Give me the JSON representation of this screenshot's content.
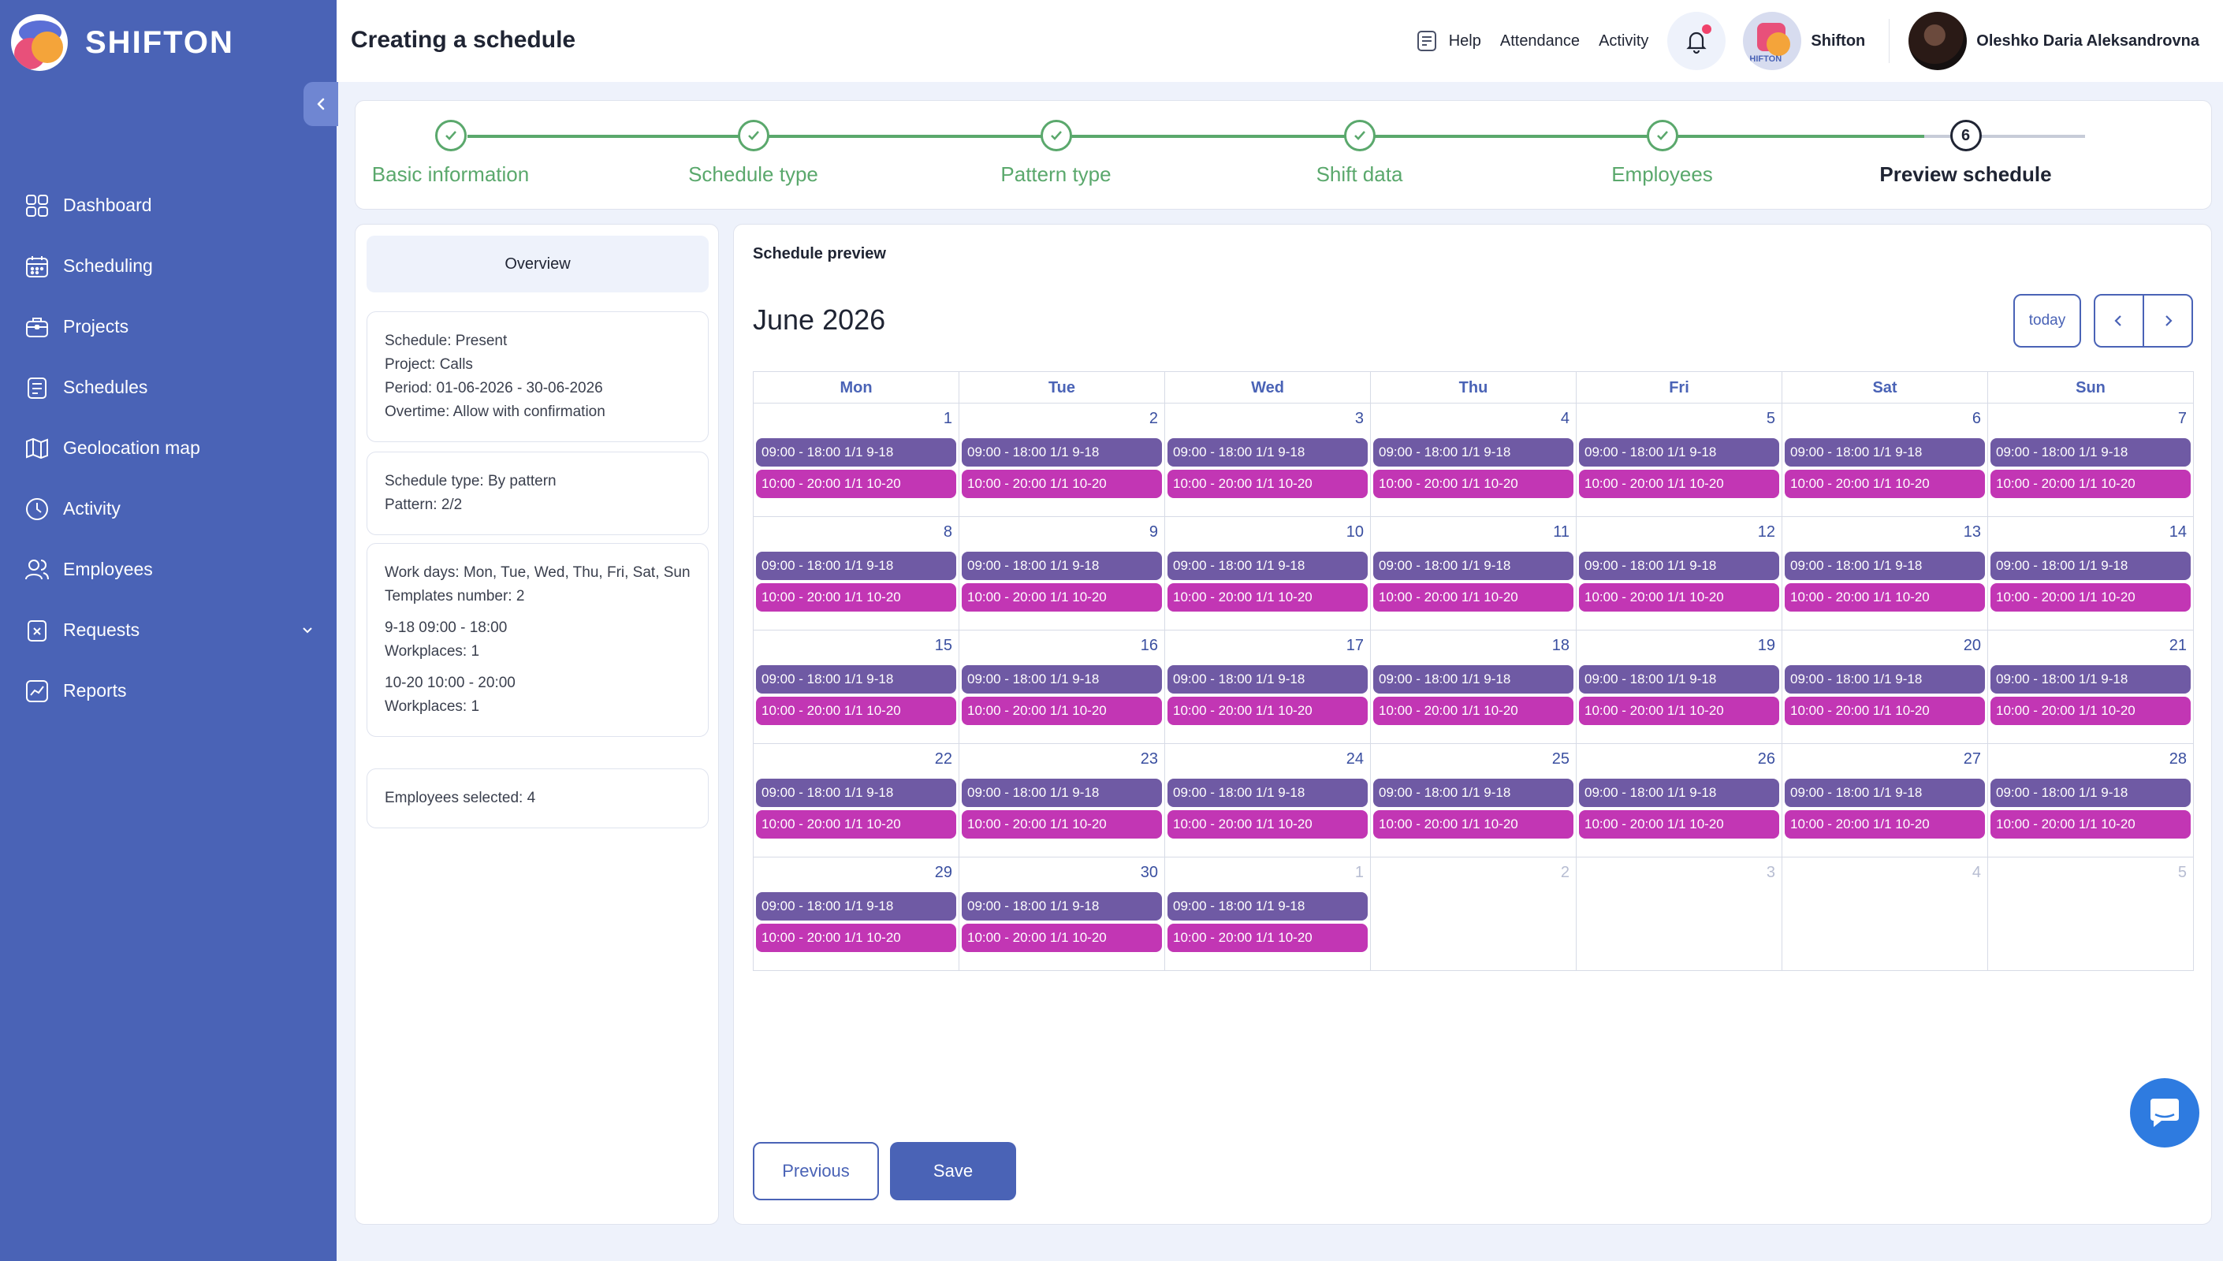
{
  "brand": {
    "name": "SHIFTON"
  },
  "sidebar": {
    "items": [
      {
        "label": "Dashboard",
        "icon": "dashboard-icon"
      },
      {
        "label": "Scheduling",
        "icon": "calendar-icon"
      },
      {
        "label": "Projects",
        "icon": "briefcase-icon"
      },
      {
        "label": "Schedules",
        "icon": "schedule-icon"
      },
      {
        "label": "Geolocation map",
        "icon": "map-icon"
      },
      {
        "label": "Activity",
        "icon": "clock-icon"
      },
      {
        "label": "Employees",
        "icon": "users-icon"
      },
      {
        "label": "Requests",
        "icon": "request-icon"
      },
      {
        "label": "Reports",
        "icon": "chart-icon"
      }
    ]
  },
  "header": {
    "title": "Creating a schedule",
    "help": "Help",
    "attendance": "Attendance",
    "activity": "Activity",
    "company": "Shifton",
    "company_logo_text": "HIFTON",
    "user": "Oleshko Daria Aleksandrovna"
  },
  "stepper": {
    "steps": [
      {
        "label": "Basic information",
        "status": "done"
      },
      {
        "label": "Schedule type",
        "status": "done"
      },
      {
        "label": "Pattern type",
        "status": "done"
      },
      {
        "label": "Shift data",
        "status": "done"
      },
      {
        "label": "Employees",
        "status": "done"
      },
      {
        "label": "Preview schedule",
        "status": "current",
        "number": "6"
      }
    ]
  },
  "overview": {
    "tab": "Overview",
    "schedule": "Schedule: Present",
    "project": "Project: Calls",
    "period": "Period: 01-06-2026 - 30-06-2026",
    "overtime": "Overtime: Allow with confirmation",
    "schedule_type": "Schedule type: By pattern",
    "pattern": "Pattern: 2/2",
    "work_days": "Work days: Mon, Tue, Wed, Thu, Fri, Sat, Sun",
    "templates": "Templates number: 2",
    "template1": "9-18 09:00 - 18:00",
    "template1_wp": "Workplaces: 1",
    "template2": "10-20 10:00 - 20:00",
    "template2_wp": "Workplaces: 1",
    "employees": "Employees selected: 4"
  },
  "preview": {
    "title": "Schedule preview",
    "month": "June 2026",
    "today": "today",
    "weekdays": [
      "Mon",
      "Tue",
      "Wed",
      "Thu",
      "Fri",
      "Sat",
      "Sun"
    ],
    "shift1": "09:00 - 18:00 1/1 9-18",
    "shift2": "10:00 - 20:00 1/1 10-20",
    "weeks": [
      [
        {
          "d": "1"
        },
        {
          "d": "2"
        },
        {
          "d": "3"
        },
        {
          "d": "4"
        },
        {
          "d": "5"
        },
        {
          "d": "6"
        },
        {
          "d": "7"
        }
      ],
      [
        {
          "d": "8"
        },
        {
          "d": "9"
        },
        {
          "d": "10"
        },
        {
          "d": "11"
        },
        {
          "d": "12"
        },
        {
          "d": "13"
        },
        {
          "d": "14"
        }
      ],
      [
        {
          "d": "15"
        },
        {
          "d": "16"
        },
        {
          "d": "17"
        },
        {
          "d": "18"
        },
        {
          "d": "19"
        },
        {
          "d": "20"
        },
        {
          "d": "21"
        }
      ],
      [
        {
          "d": "22"
        },
        {
          "d": "23"
        },
        {
          "d": "24"
        },
        {
          "d": "25"
        },
        {
          "d": "26"
        },
        {
          "d": "27"
        },
        {
          "d": "28"
        }
      ],
      [
        {
          "d": "29"
        },
        {
          "d": "30"
        },
        {
          "d": "1",
          "other": true,
          "shifts": true
        },
        {
          "d": "2",
          "other": true
        },
        {
          "d": "3",
          "other": true
        },
        {
          "d": "4",
          "other": true
        },
        {
          "d": "5",
          "other": true
        }
      ]
    ]
  },
  "actions": {
    "previous": "Previous",
    "save": "Save"
  },
  "colors": {
    "sidebar": "#4a63b6",
    "done": "#5aa86c",
    "shift1": "#6f5aa4",
    "shift2": "#c236b4",
    "accent": "#4a63b6"
  }
}
